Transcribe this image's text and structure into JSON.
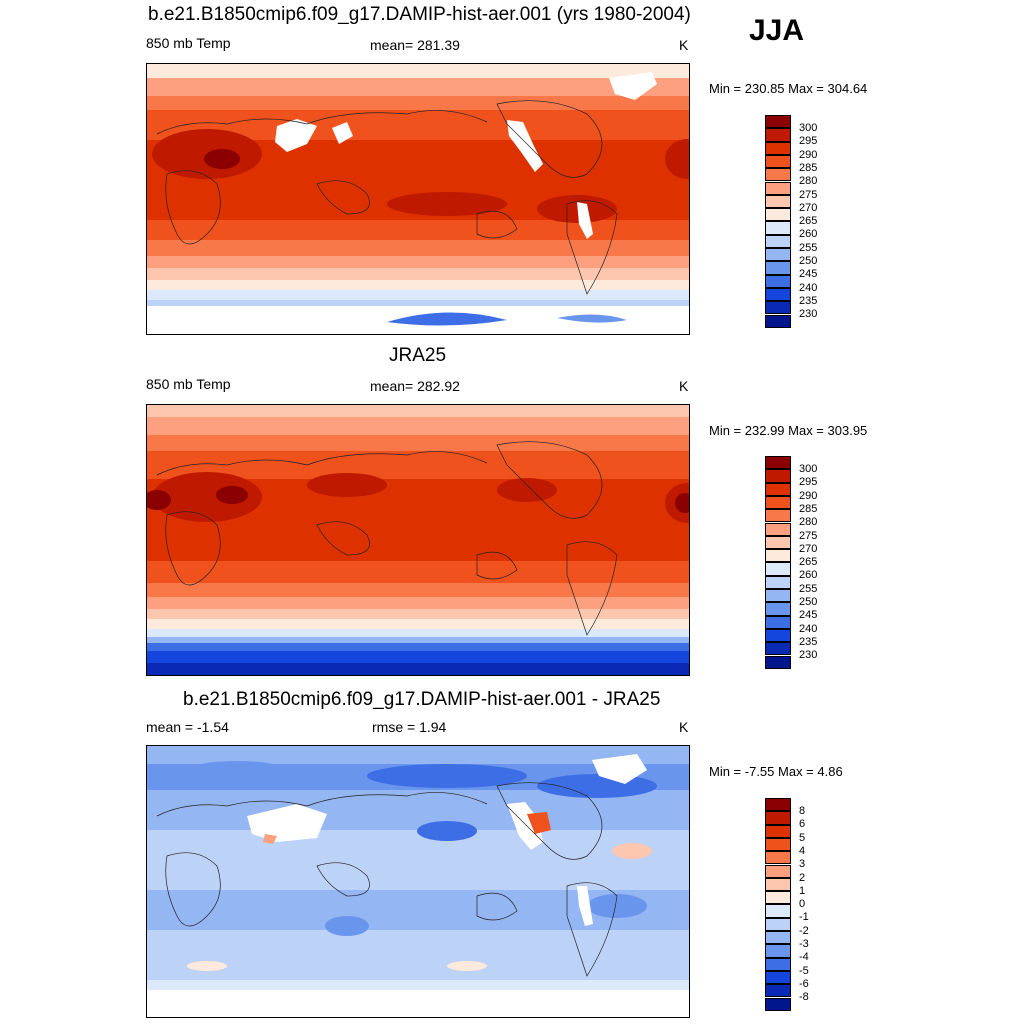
{
  "season": "JJA",
  "panels": [
    {
      "title": "b.e21.B1850cmip6.f09_g17.DAMIP-hist-aer.001 (yrs 1980-2004)",
      "left_label": "850 mb Temp",
      "center_label": "mean= 281.39",
      "units": "K",
      "minmax": "Min = 230.85 Max = 304.64",
      "colorbar_labels": [
        "300",
        "295",
        "290",
        "285",
        "280",
        "275",
        "270",
        "265",
        "260",
        "255",
        "250",
        "245",
        "240",
        "235",
        "230"
      ]
    },
    {
      "title": "JRA25",
      "left_label": "850 mb Temp",
      "center_label": "mean= 282.92",
      "units": "K",
      "minmax": "Min = 232.99 Max = 303.95",
      "colorbar_labels": [
        "300",
        "295",
        "290",
        "285",
        "280",
        "275",
        "270",
        "265",
        "260",
        "255",
        "250",
        "245",
        "240",
        "235",
        "230"
      ]
    },
    {
      "title": "b.e21.B1850cmip6.f09_g17.DAMIP-hist-aer.001 - JRA25",
      "left_label": "mean =  -1.54",
      "center_label": "rmse =   1.94",
      "units": "K",
      "minmax": "Min =  -7.55 Max =   4.86",
      "colorbar_labels": [
        "8",
        "6",
        "5",
        "4",
        "3",
        "2",
        "1",
        "0",
        "-1",
        "-2",
        "-3",
        "-4",
        "-5",
        "-6",
        "-8"
      ]
    }
  ],
  "colors": {
    "abs_scale": [
      "#8b0000",
      "#bf1a00",
      "#dd3200",
      "#f0521e",
      "#f8784a",
      "#fca080",
      "#fdc6ae",
      "#feeadc",
      "#dce9fb",
      "#bcd2f7",
      "#94b6f2",
      "#6a95ec",
      "#3d6ee6",
      "#1446dd",
      "#0a2ab5",
      "#00168a"
    ],
    "diff_scale": [
      "#8b0000",
      "#bf1a00",
      "#dd3200",
      "#f0521e",
      "#f8784a",
      "#fca080",
      "#fdc6ae",
      "#feeadc",
      "#dce9fb",
      "#bcd2f7",
      "#94b6f2",
      "#6a95ec",
      "#3d6ee6",
      "#1446dd",
      "#0a2ab5",
      "#00168a"
    ]
  }
}
